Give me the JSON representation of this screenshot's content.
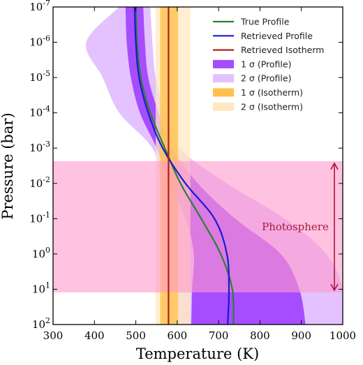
{
  "chart_data": {
    "type": "line",
    "xlabel": "Temperature (K)",
    "ylabel": "Pressure (bar)",
    "xlim": [
      300,
      1000
    ],
    "ylim_log10": [
      2,
      -7
    ],
    "y_scale": "log",
    "y_inverted": true,
    "x_ticks": [
      300,
      400,
      500,
      600,
      700,
      800,
      900,
      1000
    ],
    "y_ticks": [
      {
        "base": "10",
        "exp": "-7",
        "value": -7
      },
      {
        "base": "10",
        "exp": "-6",
        "value": -6
      },
      {
        "base": "10",
        "exp": "-5",
        "value": -5
      },
      {
        "base": "10",
        "exp": "-4",
        "value": -4
      },
      {
        "base": "10",
        "exp": "-3",
        "value": -3
      },
      {
        "base": "10",
        "exp": "-2",
        "value": -2
      },
      {
        "base": "10",
        "exp": "-1",
        "value": -1
      },
      {
        "base": "10",
        "exp": "0",
        "value": 0
      },
      {
        "base": "10",
        "exp": "1",
        "value": 1
      },
      {
        "base": "10",
        "exp": "2",
        "value": 2
      }
    ],
    "legend_position": "top-right",
    "legend": [
      {
        "label": "True Profile",
        "kind": "line",
        "color": "#2e7d32"
      },
      {
        "label": "Retrieved Profile",
        "kind": "line",
        "color": "#1a1ad0"
      },
      {
        "label": "Retrieved Isotherm",
        "kind": "line",
        "color": "#b71c1c"
      },
      {
        "label": "1 σ (Profile)",
        "kind": "patch",
        "color": "#a64dff"
      },
      {
        "label": "2 σ (Profile)",
        "kind": "patch",
        "color": "#e3c2ff"
      },
      {
        "label": "1 σ (Isotherm)",
        "kind": "patch",
        "color": "#ffc04d"
      },
      {
        "label": "2 σ (Isotherm)",
        "kind": "patch",
        "color": "#ffe8bf"
      }
    ],
    "photosphere": {
      "label": "Photosphere",
      "log10P_range": [
        -2.63,
        1.09
      ],
      "color": "#ff99cc",
      "text_color": "#a51a3a"
    },
    "isotherm": {
      "T": 579,
      "sigma1": [
        559,
        602
      ],
      "sigma2": [
        548,
        632
      ]
    },
    "log10P_grid": [
      -7,
      -6,
      -5,
      -4,
      -3,
      -2,
      -1,
      0,
      1,
      2
    ],
    "true_profile_T": [
      500,
      503,
      512,
      535,
      570,
      608,
      658,
      705,
      733,
      736
    ],
    "retrieved_profile_T": [
      497,
      500,
      508,
      530,
      565,
      620,
      690,
      720,
      725,
      722
    ],
    "profile_sigma1_low": [
      475,
      478,
      488,
      510,
      550,
      580,
      620,
      640,
      636,
      634
    ],
    "profile_sigma1_high": [
      518,
      522,
      530,
      555,
      588,
      650,
      740,
      850,
      895,
      910
    ],
    "profile_sigma2_low": [
      460,
      380,
      420,
      460,
      540,
      563,
      590,
      598,
      600,
      602
    ],
    "profile_sigma2_high": [
      535,
      540,
      548,
      570,
      605,
      720,
      860,
      960,
      1000,
      1000
    ]
  }
}
